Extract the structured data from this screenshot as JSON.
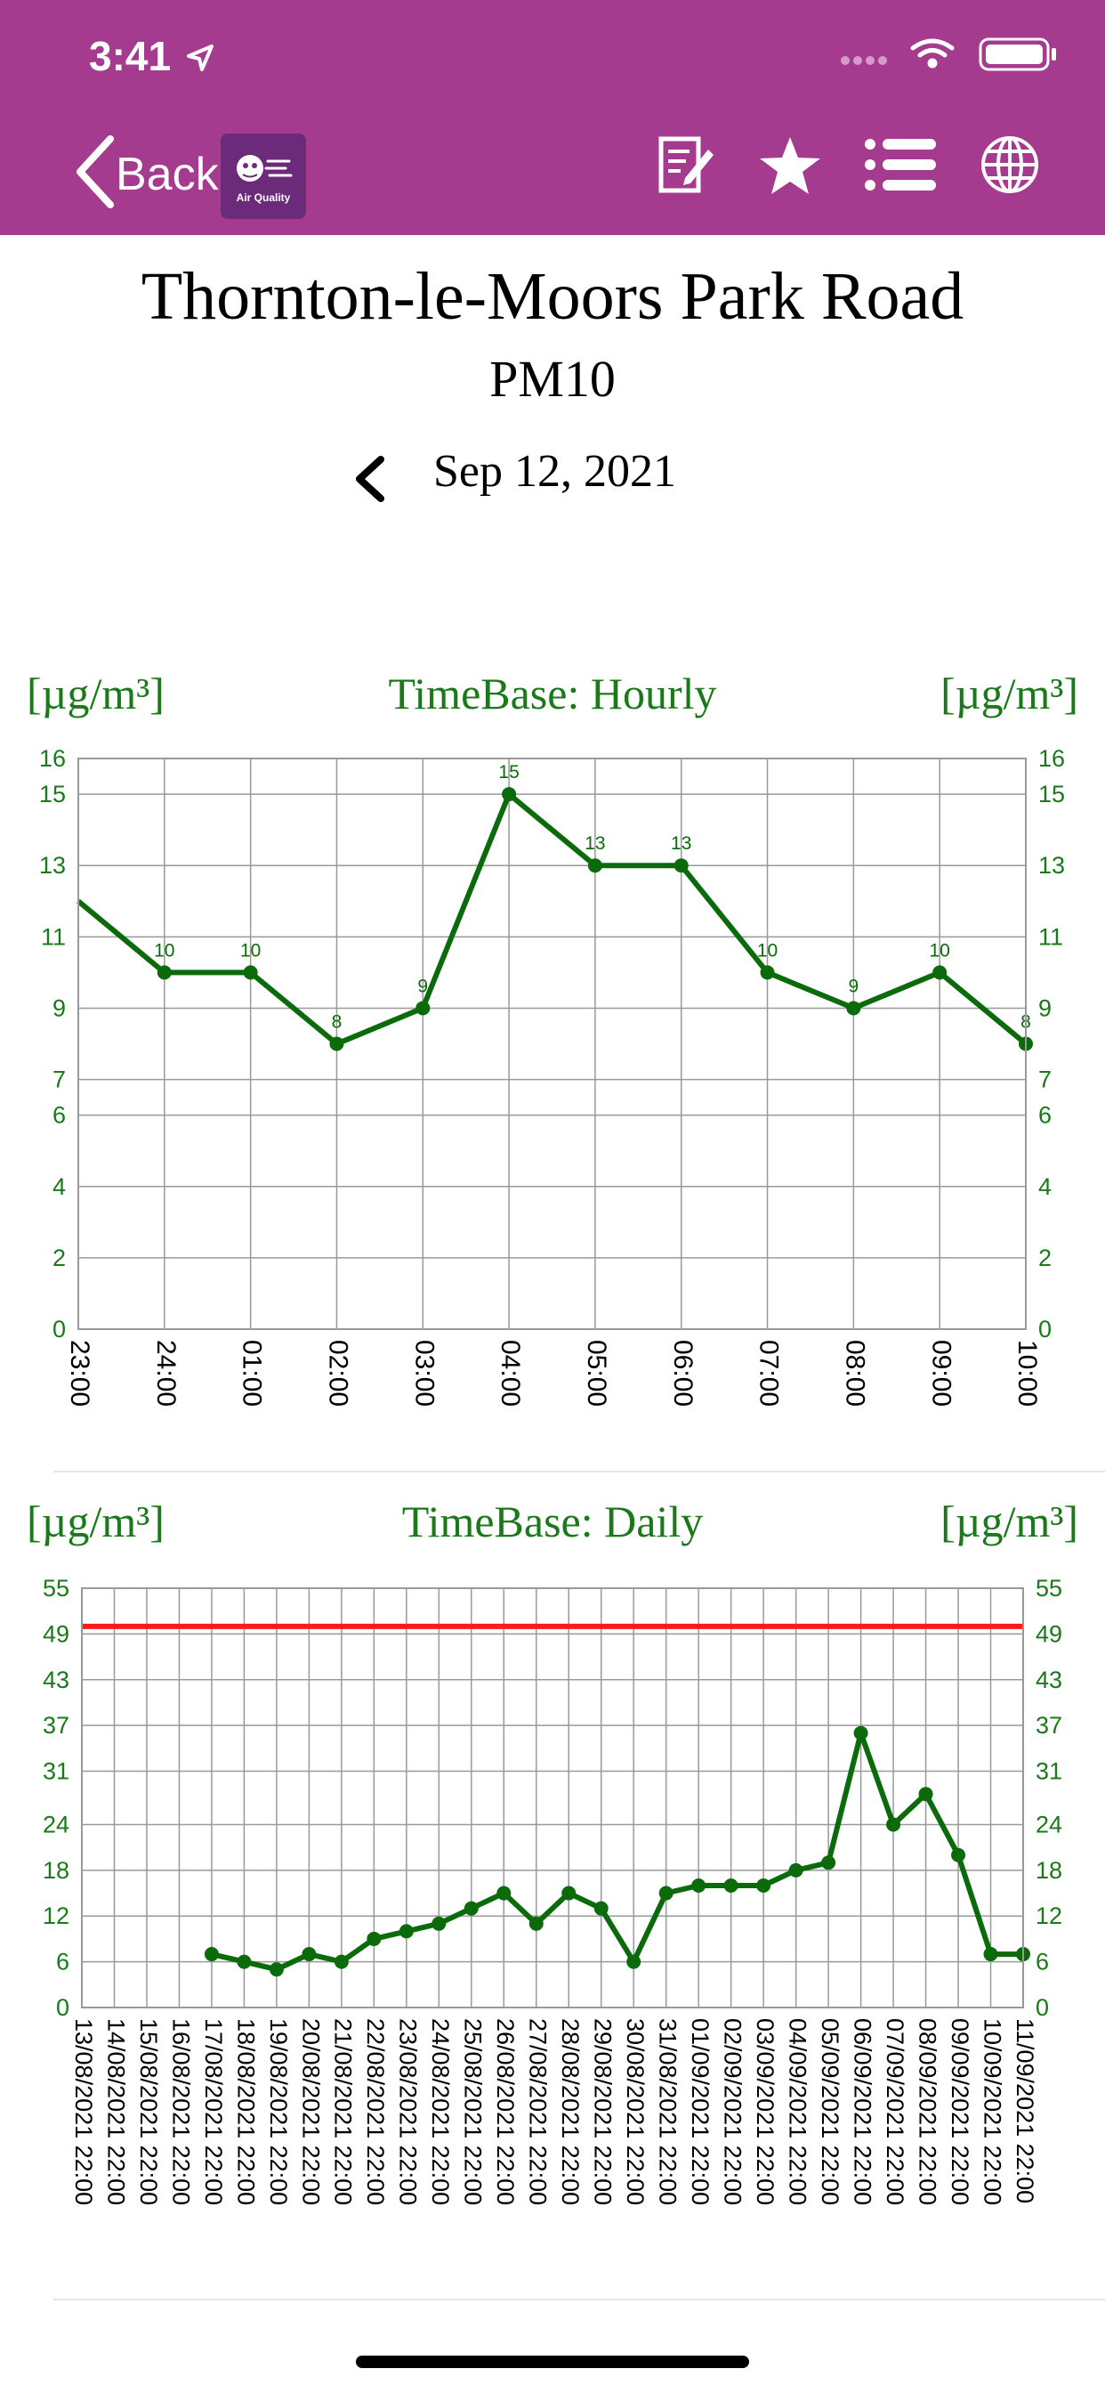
{
  "status_bar": {
    "time": "3:41"
  },
  "nav": {
    "back_label": "Back",
    "logo_text": "Air Quality",
    "icons": [
      "notes-icon",
      "star-icon",
      "list-icon",
      "globe-icon"
    ]
  },
  "page": {
    "station": "Thornton-le-Moors Park Road",
    "pollutant": "PM10",
    "date": "Sep 12, 2021"
  },
  "colors": {
    "header_bg": "#a53b8e",
    "series": "#0b6b0b",
    "label_green": "#1a7a1a",
    "limit_line": "#ff1a1a",
    "grid": "#999999"
  },
  "chart_data": [
    {
      "type": "line",
      "title": "TimeBase: Hourly",
      "ylabel_left": "[µg/m³]",
      "ylabel_right": "[µg/m³]",
      "x": [
        "23:00",
        "24:00",
        "01:00",
        "02:00",
        "03:00",
        "04:00",
        "05:00",
        "06:00",
        "07:00",
        "08:00",
        "09:00",
        "10:00"
      ],
      "y_ticks": [
        0,
        2,
        4,
        6,
        7,
        9,
        11,
        13,
        15,
        16
      ],
      "ylim": [
        0,
        16
      ],
      "grid": true,
      "series": [
        {
          "values": [
            12,
            10,
            10,
            8,
            9,
            15,
            13,
            13,
            10,
            9,
            10,
            8
          ],
          "data_labels": [
            "",
            "10",
            "10",
            "8",
            "9",
            "15",
            "13",
            "13",
            "10",
            "9",
            "10",
            "8"
          ]
        }
      ]
    },
    {
      "type": "line",
      "title": "TimeBase: Daily",
      "ylabel_left": "[µg/m³]",
      "ylabel_right": "[µg/m³]",
      "x": [
        "13/08/2021 22:00",
        "14/08/2021 22:00",
        "15/08/2021 22:00",
        "16/08/2021 22:00",
        "17/08/2021 22:00",
        "18/08/2021 22:00",
        "19/08/2021 22:00",
        "20/08/2021 22:00",
        "21/08/2021 22:00",
        "22/08/2021 22:00",
        "23/08/2021 22:00",
        "24/08/2021 22:00",
        "25/08/2021 22:00",
        "26/08/2021 22:00",
        "27/08/2021 22:00",
        "28/08/2021 22:00",
        "29/08/2021 22:00",
        "30/08/2021 22:00",
        "31/08/2021 22:00",
        "01/09/2021 22:00",
        "02/09/2021 22:00",
        "03/09/2021 22:00",
        "04/09/2021 22:00",
        "05/09/2021 22:00",
        "06/09/2021 22:00",
        "07/09/2021 22:00",
        "08/09/2021 22:00",
        "09/09/2021 22:00",
        "10/09/2021 22:00",
        "11/09/2021 22:00"
      ],
      "y_ticks": [
        0,
        6,
        12,
        18,
        24,
        31,
        37,
        43,
        49,
        55
      ],
      "ylim": [
        0,
        55
      ],
      "limit": 50,
      "grid": true,
      "series": [
        {
          "values": [
            null,
            null,
            null,
            null,
            7,
            6,
            5,
            7,
            6,
            9,
            10,
            11,
            13,
            15,
            11,
            15,
            13,
            6,
            15,
            16,
            16,
            16,
            18,
            19,
            36,
            24,
            28,
            20,
            7,
            7
          ]
        }
      ]
    }
  ]
}
